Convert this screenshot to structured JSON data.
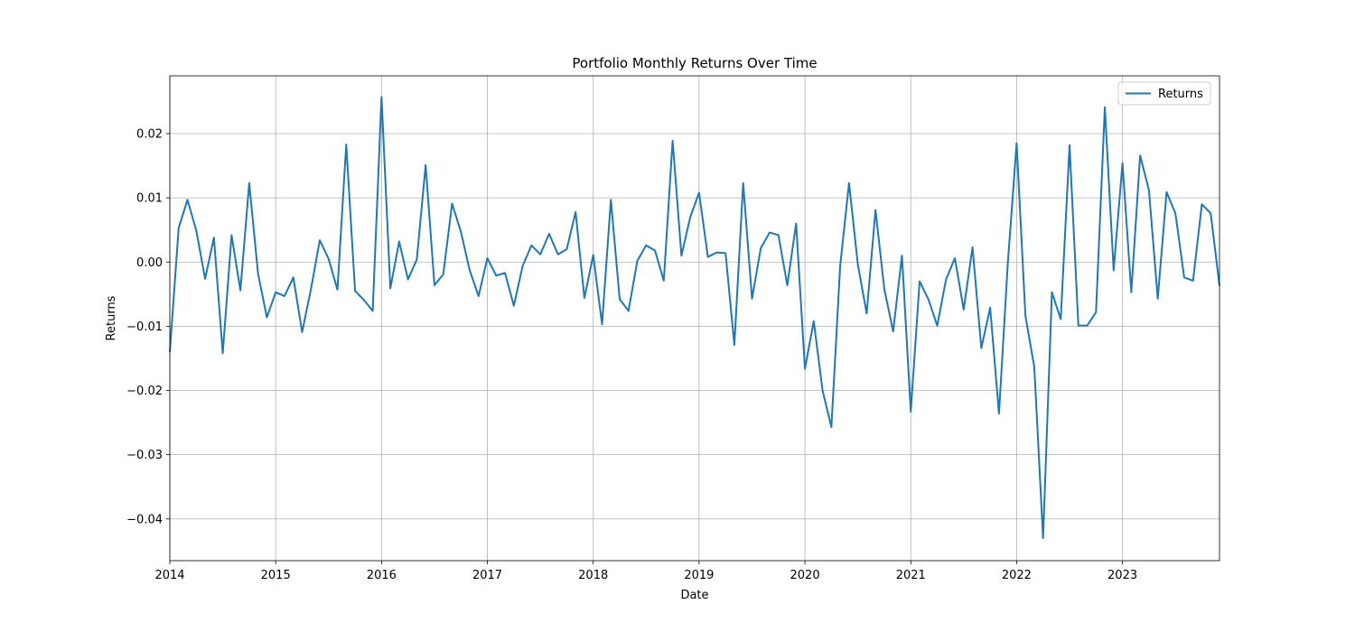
{
  "chart_data": {
    "type": "line",
    "title": "Portfolio Monthly Returns Over Time",
    "xlabel": "Date",
    "ylabel": "Returns",
    "x_range": [
      "2014-01",
      "2023-12"
    ],
    "ylim": [
      -0.0465,
      0.029
    ],
    "x_ticks": [
      "2014",
      "2015",
      "2016",
      "2017",
      "2018",
      "2019",
      "2020",
      "2021",
      "2022",
      "2023"
    ],
    "y_ticks": [
      "0.02",
      "0.01",
      "0.00",
      "−0.01",
      "−0.02",
      "−0.03",
      "−0.04"
    ],
    "y_tick_values": [
      0.02,
      0.01,
      0.0,
      -0.01,
      -0.02,
      -0.03,
      -0.04
    ],
    "grid": true,
    "legend_position": "top-right",
    "colors": {
      "series": "#1f77b4",
      "grid": "#b0b0b0",
      "axes": "#000000"
    },
    "series": [
      {
        "name": "Returns",
        "start": "2014-01",
        "frequency": "monthly",
        "values": [
          -0.014,
          0.0053,
          0.0097,
          0.0049,
          -0.0026,
          0.0038,
          -0.0142,
          0.0042,
          -0.0044,
          0.0123,
          -0.0018,
          -0.0086,
          -0.0047,
          -0.0053,
          -0.0024,
          -0.0109,
          -0.0042,
          0.0034,
          0.0005,
          -0.0043,
          0.0183,
          -0.0045,
          -0.0059,
          -0.0076,
          0.0257,
          -0.0041,
          0.0032,
          -0.0027,
          0.0004,
          0.0151,
          -0.0036,
          -0.0019,
          0.0091,
          0.0047,
          -0.0013,
          -0.0053,
          0.0006,
          -0.0021,
          -0.0017,
          -0.0068,
          -0.0006,
          0.0026,
          0.0012,
          0.0044,
          0.0012,
          0.002,
          0.0078,
          -0.0056,
          0.0011,
          -0.0097,
          0.0097,
          -0.0058,
          -0.0076,
          0.0002,
          0.0026,
          0.0018,
          -0.0029,
          0.0189,
          0.001,
          0.007,
          0.0108,
          0.0008,
          0.0015,
          0.0014,
          -0.0129,
          0.0123,
          -0.0057,
          0.0022,
          0.0046,
          0.0042,
          -0.0036,
          0.006,
          -0.0166,
          -0.0092,
          -0.02,
          -0.0257,
          -0.0005,
          0.0123,
          -0.0004,
          -0.008,
          0.0081,
          -0.0042,
          -0.0108,
          0.001,
          -0.0233,
          -0.003,
          -0.0058,
          -0.0099,
          -0.0027,
          0.0006,
          -0.0074,
          0.0023,
          -0.0134,
          -0.0071,
          -0.0236,
          -0.0002,
          0.0185,
          -0.0084,
          -0.0163,
          -0.043,
          -0.0047,
          -0.0089,
          0.0182,
          -0.0099,
          -0.0099,
          -0.0078,
          0.0241,
          -0.0013,
          0.0154,
          -0.0047,
          0.0166,
          0.0112,
          -0.0057,
          0.0109,
          0.0076,
          -0.0024,
          -0.0029,
          0.009,
          0.0076,
          -0.0037
        ]
      }
    ]
  }
}
